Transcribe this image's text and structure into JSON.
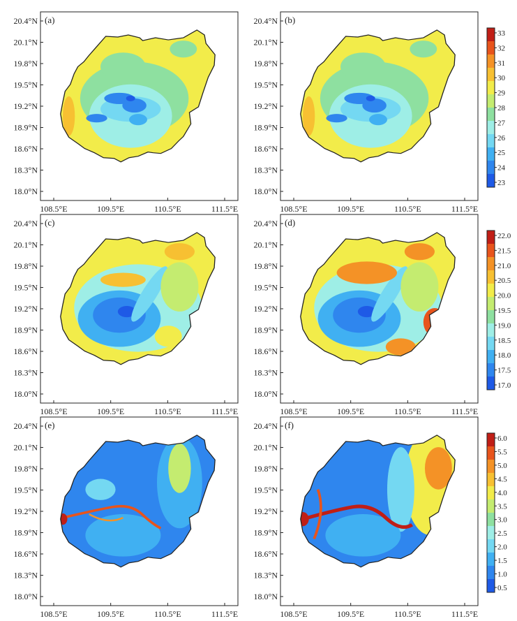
{
  "figure": {
    "x_ticks": [
      "108.5°E",
      "109.5°E",
      "110.5°E",
      "111.5°E"
    ],
    "y_ticks": [
      "20.4°N",
      "20.1°N",
      "19.8°N",
      "19.5°N",
      "19.2°N",
      "18.9°N",
      "18.6°N",
      "18.3°N",
      "18.0°N"
    ],
    "colorbars": [
      {
        "row": 0,
        "ticks": [
          "33",
          "32",
          "31",
          "30",
          "29",
          "28",
          "27",
          "26",
          "25",
          "24",
          "23"
        ]
      },
      {
        "row": 1,
        "ticks": [
          "22.0",
          "21.5",
          "21.0",
          "20.5",
          "20.0",
          "19.5",
          "19.0",
          "18.5",
          "18.0",
          "17.5",
          "17.0"
        ]
      },
      {
        "row": 2,
        "ticks": [
          "6.0",
          "5.5",
          "5.0",
          "4.5",
          "4.0",
          "3.5",
          "3.0",
          "2.5",
          "2.0",
          "1.5",
          "1.0",
          "0.5"
        ]
      }
    ],
    "colors": {
      "scale": [
        "#1e5ae6",
        "#2f86ee",
        "#40b0f2",
        "#74d8f2",
        "#9eeee6",
        "#8ee0a0",
        "#c4ec70",
        "#f2ec4a",
        "#f7c032",
        "#f49226",
        "#e8541c",
        "#c01e16"
      ],
      "bg": "#ffffff",
      "ink": "#222222"
    }
  },
  "chart_data": [
    {
      "type": "heatmap",
      "panel": "(a)",
      "xlim": [
        108.5,
        111.5
      ],
      "ylim": [
        18.0,
        20.4
      ],
      "colorbar_range": [
        23,
        33
      ],
      "description_values": {
        "coast": 29,
        "interior": 27.5,
        "mountains": 23.5
      }
    },
    {
      "type": "heatmap",
      "panel": "(b)",
      "xlim": [
        108.5,
        111.5
      ],
      "ylim": [
        18.0,
        20.4
      ],
      "colorbar_range": [
        23,
        33
      ],
      "description_values": {
        "coast": 29,
        "interior": 27.5,
        "mountains": 23.5
      }
    },
    {
      "type": "heatmap",
      "panel": "(c)",
      "xlim": [
        108.5,
        111.5
      ],
      "ylim": [
        18.0,
        20.4
      ],
      "colorbar_range": [
        17.0,
        22.0
      ],
      "description_values": {
        "coast": 20.5,
        "interior": 19.0,
        "mountains": 17.2
      }
    },
    {
      "type": "heatmap",
      "panel": "(d)",
      "xlim": [
        108.5,
        111.5
      ],
      "ylim": [
        18.0,
        20.4
      ],
      "colorbar_range": [
        17.0,
        22.0
      ],
      "description_values": {
        "coast": 21.0,
        "interior": 19.0,
        "mountains": 17.2
      }
    },
    {
      "type": "heatmap",
      "panel": "(e)",
      "xlim": [
        108.5,
        111.5
      ],
      "ylim": [
        18.0,
        20.4
      ],
      "colorbar_range": [
        0.5,
        6.0
      ],
      "description_values": {
        "east": 3.0,
        "interior": 1.5,
        "west_valleys": 5.5
      }
    },
    {
      "type": "heatmap",
      "panel": "(f)",
      "xlim": [
        108.5,
        111.5
      ],
      "ylim": [
        18.0,
        20.4
      ],
      "colorbar_range": [
        0.5,
        6.0
      ],
      "description_values": {
        "east": 4.3,
        "interior": 1.5,
        "west_valleys": 6.0
      }
    }
  ]
}
